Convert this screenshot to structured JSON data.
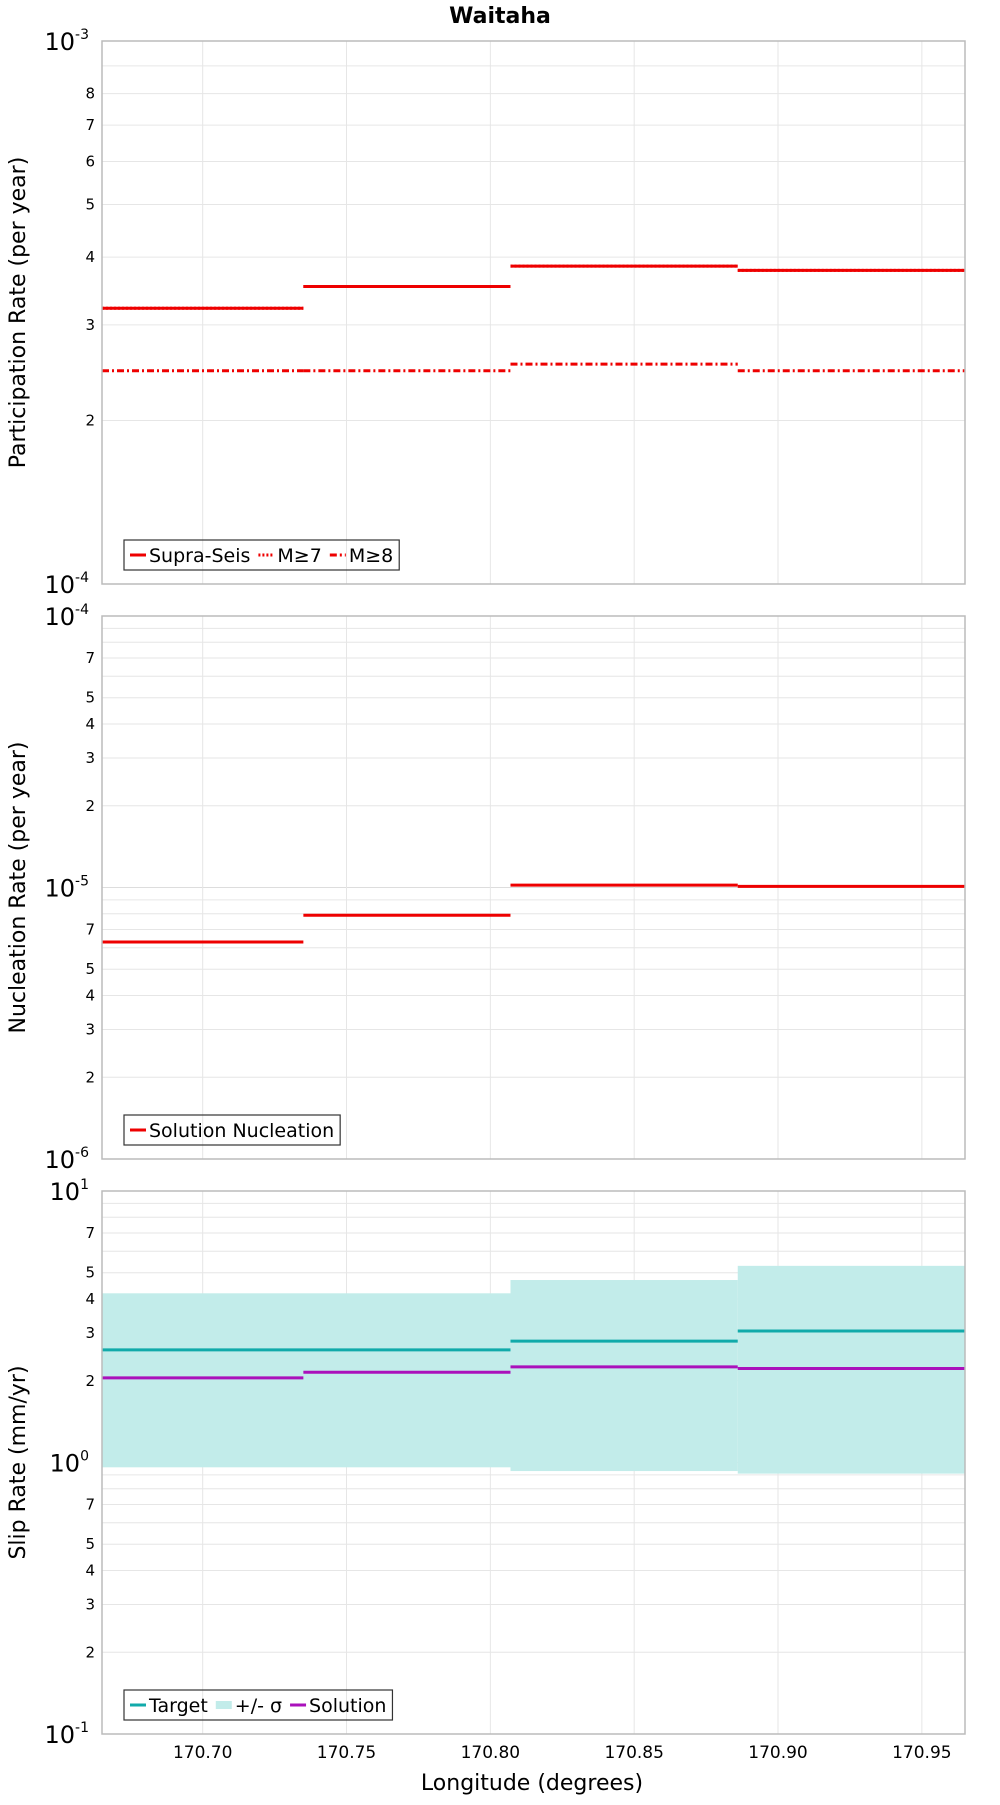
{
  "title": "Waitaha",
  "xlabel": "Longitude (degrees)",
  "x_ticks": [
    "170.70",
    "170.75",
    "170.80",
    "170.85",
    "170.90",
    "170.95"
  ],
  "colors": {
    "red": "#ee0000",
    "teal": "#11aaaa",
    "band": "#c2ecea",
    "purple": "#aa11bb",
    "grid": "#e6e6e6",
    "frame": "#bbbbbb"
  },
  "chart_data": [
    {
      "type": "line",
      "ylabel": "Participation Rate (per year)",
      "yscale": "log",
      "ylim": [
        0.0001,
        0.001
      ],
      "xlim": [
        170.665,
        170.965
      ],
      "y_major_labels": [
        {
          "value": 0.0001,
          "base": "10",
          "exp": "-4"
        },
        {
          "value": 0.001,
          "base": "10",
          "exp": "-3"
        }
      ],
      "y_minor_labels": [
        "2",
        "3",
        "4",
        "5",
        "6",
        "7",
        "8"
      ],
      "legend": {
        "placement": "bottom-left",
        "entries": [
          {
            "label": "Supra-Seis",
            "style": "solid",
            "color": "#ee0000"
          },
          {
            "label": "M≥7",
            "style": "dotted",
            "color": "#ee0000"
          },
          {
            "label": "M≥8",
            "style": "dashdot",
            "color": "#ee0000"
          }
        ]
      },
      "series": [
        {
          "name": "Supra-Seis",
          "style": "solid",
          "color": "#ee0000",
          "steps": [
            [
              170.665,
              170.735,
              0.000322
            ],
            [
              170.735,
              170.807,
              0.000353
            ],
            [
              170.807,
              170.886,
              0.000385
            ],
            [
              170.886,
              170.965,
              0.000378
            ]
          ]
        },
        {
          "name": "M≥7",
          "style": "dotted",
          "color": "#ee0000",
          "steps": [
            [
              170.665,
              170.735,
              0.000322
            ],
            [
              170.735,
              170.807,
              0.000353
            ],
            [
              170.807,
              170.886,
              0.000385
            ],
            [
              170.886,
              170.965,
              0.000378
            ]
          ]
        },
        {
          "name": "M≥8",
          "style": "dashdot",
          "color": "#ee0000",
          "steps": [
            [
              170.665,
              170.735,
              0.000247
            ],
            [
              170.735,
              170.807,
              0.000247
            ],
            [
              170.807,
              170.886,
              0.000254
            ],
            [
              170.886,
              170.965,
              0.000247
            ]
          ]
        }
      ]
    },
    {
      "type": "line",
      "ylabel": "Nucleation Rate (per year)",
      "yscale": "log",
      "ylim": [
        1e-06,
        0.0001
      ],
      "xlim": [
        170.665,
        170.965
      ],
      "y_major_labels": [
        {
          "value": 1e-06,
          "base": "10",
          "exp": "-6"
        },
        {
          "value": 1e-05,
          "base": "10",
          "exp": "-5"
        },
        {
          "value": 0.0001,
          "base": "10",
          "exp": "-4"
        }
      ],
      "y_minor_labels": [
        "2",
        "3",
        "4",
        "5",
        "7"
      ],
      "legend": {
        "placement": "bottom-left",
        "entries": [
          {
            "label": "Solution Nucleation",
            "style": "solid",
            "color": "#ee0000"
          }
        ]
      },
      "series": [
        {
          "name": "Solution Nucleation",
          "style": "solid",
          "color": "#ee0000",
          "steps": [
            [
              170.665,
              170.735,
              6.3e-06
            ],
            [
              170.735,
              170.807,
              7.9e-06
            ],
            [
              170.807,
              170.886,
              1.02e-05
            ],
            [
              170.886,
              170.965,
              1.01e-05
            ]
          ]
        }
      ]
    },
    {
      "type": "line",
      "ylabel": "Slip Rate (mm/yr)",
      "yscale": "log",
      "ylim": [
        0.1,
        10
      ],
      "xlim": [
        170.665,
        170.965
      ],
      "y_major_labels": [
        {
          "value": 0.1,
          "base": "10",
          "exp": "-1"
        },
        {
          "value": 1,
          "base": "10",
          "exp": "0"
        },
        {
          "value": 10,
          "base": "10",
          "exp": "1"
        }
      ],
      "y_minor_labels": [
        "2",
        "3",
        "4",
        "5",
        "7"
      ],
      "legend": {
        "placement": "bottom-left",
        "entries": [
          {
            "label": "Target",
            "style": "solid",
            "color": "#11aaaa"
          },
          {
            "label": "+/- σ",
            "style": "band",
            "color": "#c2ecea"
          },
          {
            "label": "Solution",
            "style": "solid",
            "color": "#aa11bb"
          }
        ]
      },
      "bands": [
        {
          "name": "+/- σ",
          "color": "#c2ecea",
          "steps": [
            [
              170.665,
              170.807,
              0.96,
              4.2
            ],
            [
              170.807,
              170.886,
              0.93,
              4.7
            ],
            [
              170.886,
              170.965,
              0.91,
              5.3
            ]
          ]
        }
      ],
      "series": [
        {
          "name": "Target",
          "style": "solid",
          "color": "#11aaaa",
          "steps": [
            [
              170.665,
              170.807,
              2.6
            ],
            [
              170.807,
              170.886,
              2.8
            ],
            [
              170.886,
              170.965,
              3.05
            ]
          ]
        },
        {
          "name": "Solution",
          "style": "solid",
          "color": "#aa11bb",
          "steps": [
            [
              170.665,
              170.735,
              2.05
            ],
            [
              170.735,
              170.807,
              2.15
            ],
            [
              170.807,
              170.886,
              2.25
            ],
            [
              170.886,
              170.965,
              2.22
            ]
          ]
        }
      ]
    }
  ]
}
